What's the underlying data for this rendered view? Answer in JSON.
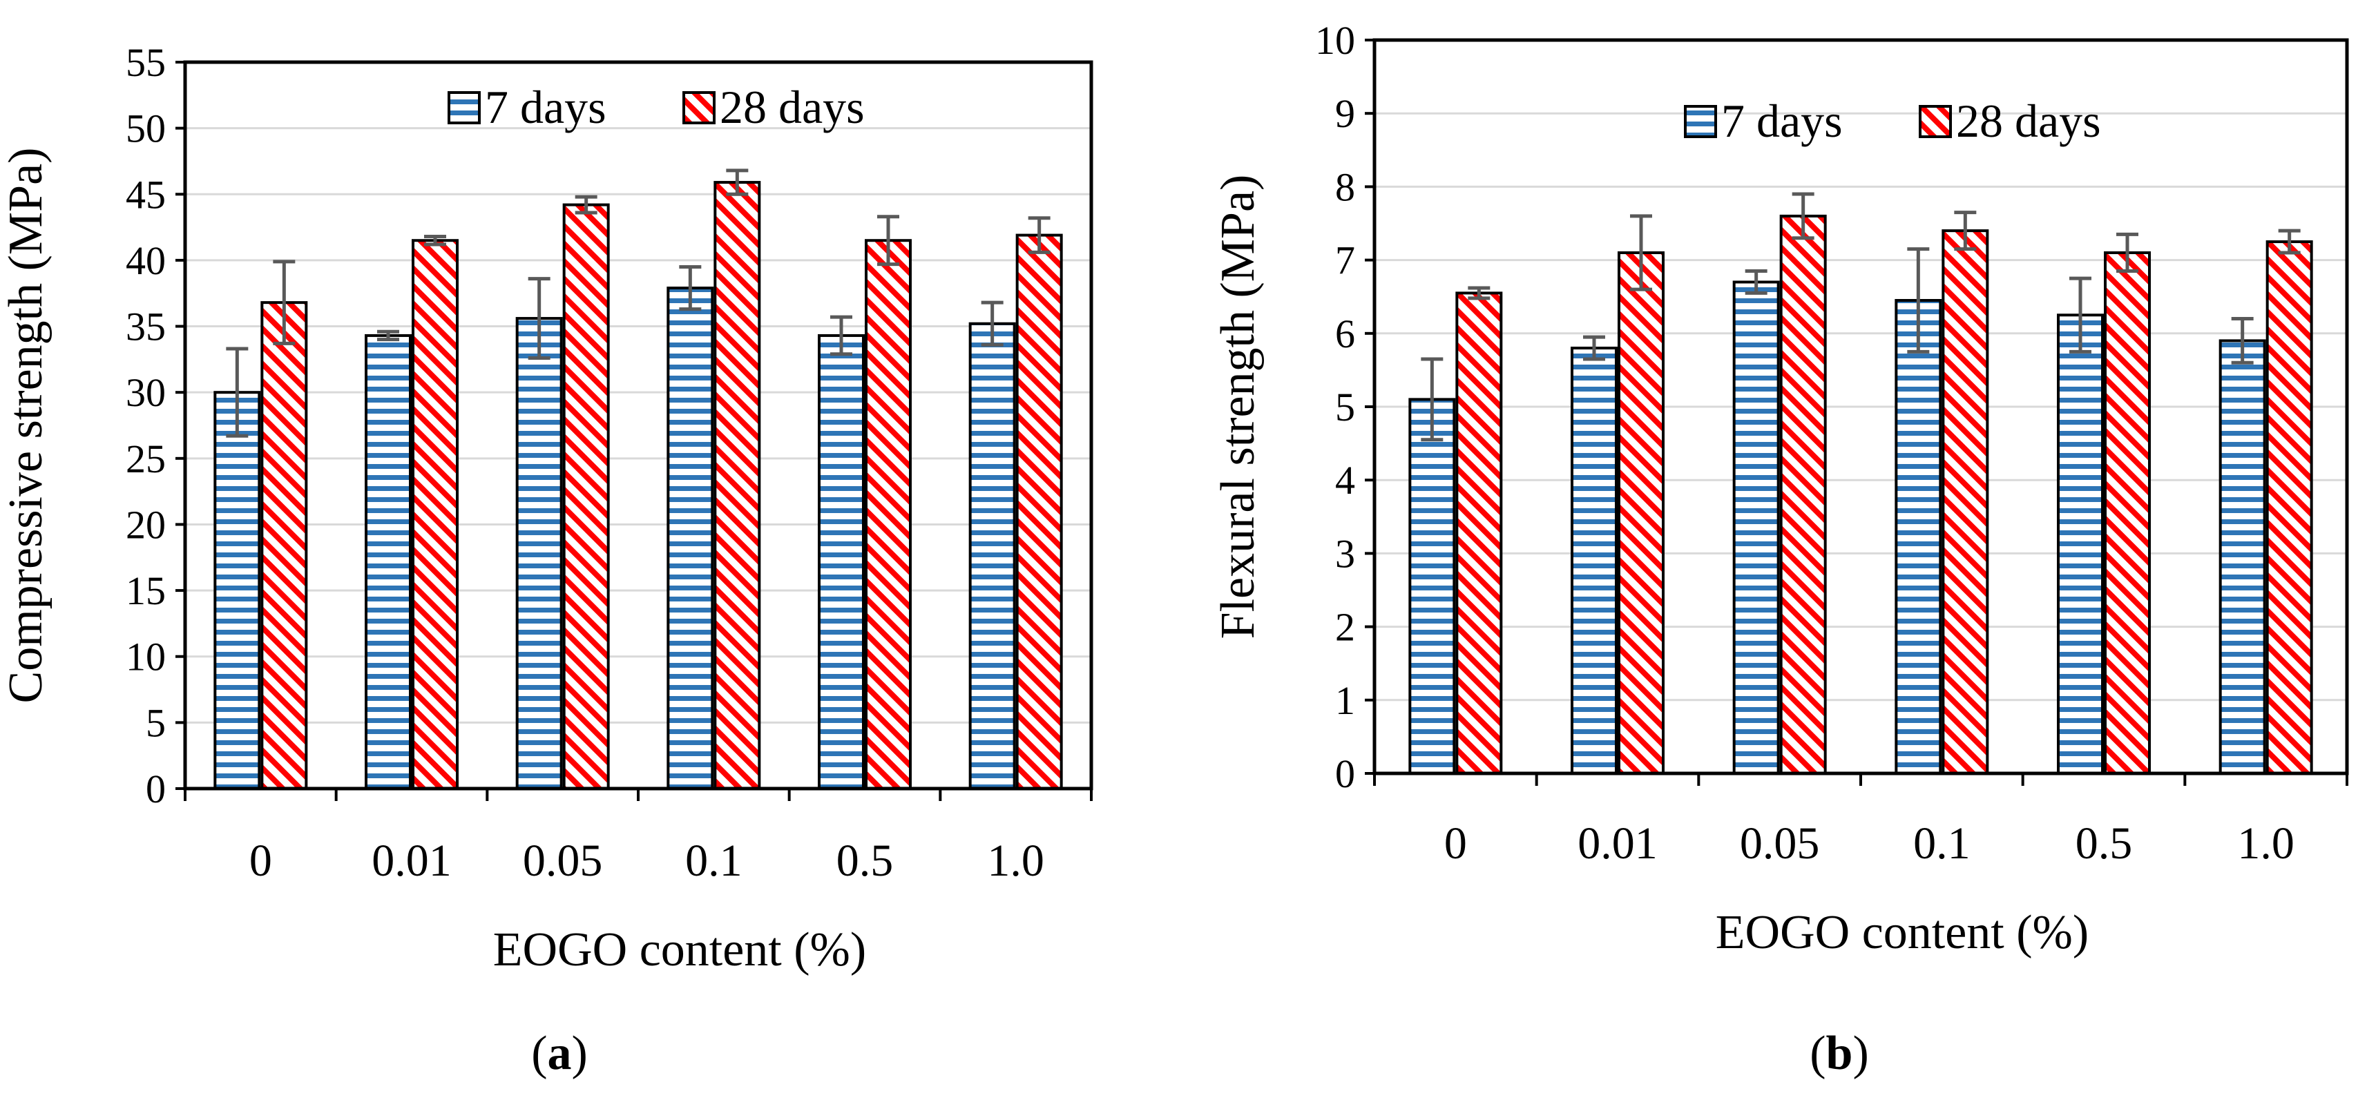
{
  "chart_data": [
    {
      "panel_label": "a",
      "type": "bar",
      "title": "",
      "xlabel": "EOGO content (%)",
      "ylabel": "Compressive strength (MPa)",
      "categories": [
        "0",
        "0.01",
        "0.05",
        "0.1",
        "0.5",
        "1.0"
      ],
      "ylim": [
        0,
        55
      ],
      "ytick_step": 5,
      "grid": true,
      "legend_position": "top-center",
      "series": [
        {
          "name": "7 days",
          "values": [
            30.0,
            34.3,
            35.6,
            37.9,
            34.3,
            35.2
          ],
          "errors": [
            3.3,
            0.3,
            3.0,
            1.6,
            1.4,
            1.6
          ],
          "color": "#2e75b6",
          "pattern": "horizontal-stripes"
        },
        {
          "name": "28 days",
          "values": [
            36.8,
            41.5,
            44.2,
            45.9,
            41.5,
            41.9
          ],
          "errors": [
            3.1,
            0.3,
            0.6,
            0.9,
            1.8,
            1.3
          ],
          "color": "#ff0000",
          "pattern": "diagonal-hatch"
        }
      ]
    },
    {
      "panel_label": "b",
      "type": "bar",
      "title": "",
      "xlabel": "EOGO content (%)",
      "ylabel": "Flexural strength (MPa)",
      "categories": [
        "0",
        "0.01",
        "0.05",
        "0.1",
        "0.5",
        "1.0"
      ],
      "ylim": [
        0,
        10
      ],
      "ytick_step": 1,
      "grid": true,
      "legend_position": "top-center",
      "series": [
        {
          "name": "7 days",
          "values": [
            5.1,
            5.8,
            6.7,
            6.45,
            6.25,
            5.9
          ],
          "errors": [
            0.55,
            0.15,
            0.15,
            0.7,
            0.5,
            0.3
          ],
          "color": "#2e75b6",
          "pattern": "horizontal-stripes"
        },
        {
          "name": "28 days",
          "values": [
            6.55,
            7.1,
            7.6,
            7.4,
            7.1,
            7.25
          ],
          "errors": [
            0.07,
            0.5,
            0.3,
            0.25,
            0.25,
            0.15
          ],
          "color": "#ff0000",
          "pattern": "diagonal-hatch"
        }
      ]
    }
  ]
}
